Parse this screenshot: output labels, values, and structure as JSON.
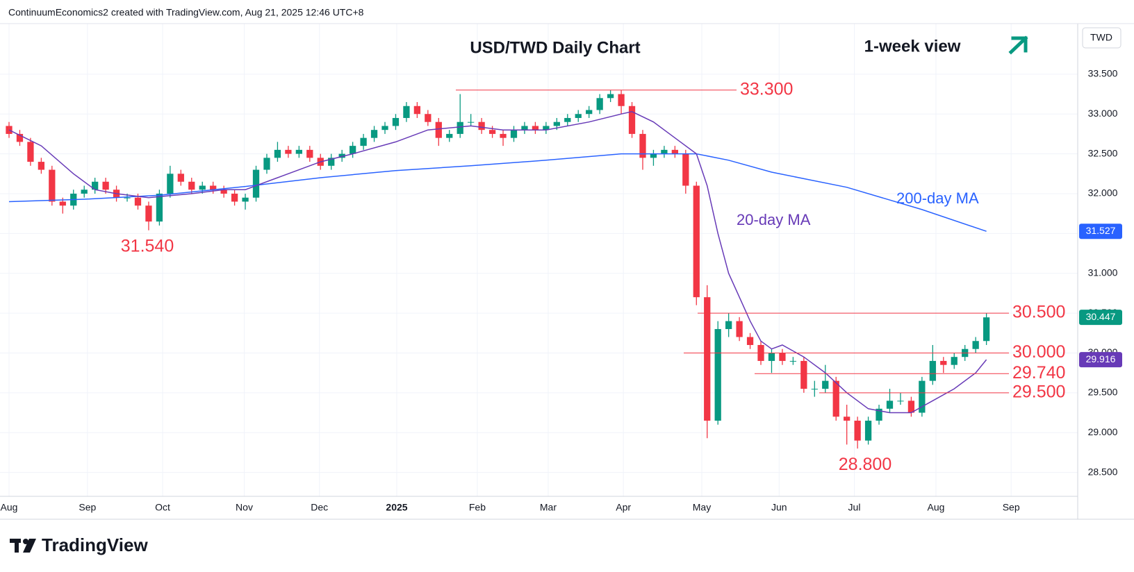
{
  "header": "ContinuumEconomics2 created with TradingView.com, Aug 21, 2025 12:46 UTC+8",
  "logo": "TradingView",
  "chart_data": {
    "type": "candlestick",
    "title": "USD/TWD Daily Chart",
    "subtitle": "1-week view",
    "currency": "TWD",
    "open": [
      32.85,
      32.75,
      32.65,
      32.4,
      32.3,
      31.9,
      31.85,
      32.0,
      32.05,
      32.15,
      32.05,
      31.95,
      31.95,
      31.85,
      31.65,
      32.0,
      32.25,
      32.15,
      32.05,
      32.1,
      32.05,
      32.0,
      31.9,
      31.95,
      32.3,
      32.45,
      32.55,
      32.5,
      32.55,
      32.45,
      32.35,
      32.45,
      32.5,
      32.6,
      32.7,
      32.8,
      32.85,
      32.95,
      33.1,
      33.0,
      32.9,
      32.7,
      32.75,
      32.9,
      32.9,
      32.8,
      32.75,
      32.7,
      32.8,
      32.85,
      32.8,
      32.85,
      32.9,
      32.95,
      33.0,
      33.05,
      33.2,
      33.25,
      33.1,
      32.75,
      32.45,
      32.5,
      32.55,
      32.5,
      32.1,
      30.7,
      29.15,
      30.3,
      30.4,
      30.2,
      30.1,
      29.9,
      30.0,
      29.9,
      29.9,
      29.55,
      29.55,
      29.65,
      29.2,
      29.15,
      28.9,
      29.15,
      29.3,
      29.4,
      29.4,
      29.25,
      29.65,
      29.9,
      29.85,
      29.95,
      30.05,
      30.15
    ],
    "high": [
      32.9,
      32.8,
      32.7,
      32.45,
      32.35,
      31.95,
      32.05,
      32.1,
      32.2,
      32.2,
      32.1,
      32.0,
      32.0,
      31.9,
      32.05,
      32.35,
      32.3,
      32.2,
      32.15,
      32.15,
      32.1,
      32.05,
      32.0,
      32.35,
      32.5,
      32.65,
      32.6,
      32.6,
      32.6,
      32.5,
      32.5,
      32.55,
      32.65,
      32.75,
      32.85,
      32.9,
      33.0,
      33.15,
      33.15,
      33.05,
      32.95,
      32.8,
      33.25,
      33.0,
      32.95,
      32.85,
      32.8,
      32.85,
      32.9,
      32.9,
      32.9,
      32.95,
      33.0,
      33.05,
      33.1,
      33.25,
      33.3,
      33.3,
      33.15,
      32.8,
      32.55,
      32.6,
      32.6,
      32.55,
      32.15,
      30.85,
      30.4,
      30.5,
      30.45,
      30.25,
      30.15,
      30.05,
      30.05,
      29.95,
      29.95,
      29.65,
      29.85,
      29.7,
      29.35,
      29.2,
      29.2,
      29.35,
      29.55,
      29.5,
      29.45,
      29.7,
      30.1,
      29.95,
      30.0,
      30.1,
      30.2,
      30.5
    ],
    "low": [
      32.7,
      32.6,
      32.35,
      32.25,
      31.85,
      31.75,
      31.8,
      31.95,
      32.0,
      32.0,
      31.9,
      31.9,
      31.8,
      31.54,
      31.6,
      31.95,
      32.1,
      32.0,
      32.0,
      32.0,
      31.95,
      31.85,
      31.8,
      31.9,
      32.25,
      32.4,
      32.45,
      32.45,
      32.4,
      32.3,
      32.3,
      32.4,
      32.45,
      32.55,
      32.65,
      32.75,
      32.8,
      32.9,
      32.95,
      32.85,
      32.6,
      32.65,
      32.7,
      32.85,
      32.75,
      32.7,
      32.6,
      32.65,
      32.75,
      32.75,
      32.75,
      32.8,
      32.85,
      32.9,
      32.95,
      33.0,
      33.15,
      33.0,
      32.7,
      32.3,
      32.35,
      32.45,
      32.45,
      32.0,
      30.6,
      28.93,
      29.1,
      30.2,
      30.15,
      30.05,
      29.85,
      29.75,
      29.85,
      29.85,
      29.5,
      29.45,
      29.5,
      29.15,
      28.85,
      28.8,
      28.85,
      29.1,
      29.25,
      29.35,
      29.2,
      29.2,
      29.6,
      29.75,
      29.8,
      29.9,
      30.0,
      30.1
    ],
    "close": [
      32.75,
      32.65,
      32.4,
      32.3,
      31.9,
      31.85,
      32.0,
      32.05,
      32.15,
      32.05,
      31.95,
      31.95,
      31.85,
      31.65,
      32.0,
      32.25,
      32.15,
      32.05,
      32.1,
      32.05,
      32.0,
      31.9,
      31.95,
      32.3,
      32.45,
      32.55,
      32.5,
      32.55,
      32.45,
      32.35,
      32.45,
      32.5,
      32.6,
      32.7,
      32.8,
      32.85,
      32.95,
      33.1,
      33.0,
      32.9,
      32.7,
      32.75,
      32.9,
      32.9,
      32.8,
      32.75,
      32.7,
      32.8,
      32.85,
      32.8,
      32.85,
      32.9,
      32.95,
      33.0,
      33.05,
      33.2,
      33.25,
      33.1,
      32.75,
      32.45,
      32.5,
      32.55,
      32.5,
      32.1,
      30.7,
      29.15,
      30.3,
      30.4,
      30.2,
      30.1,
      29.9,
      30.0,
      29.9,
      29.9,
      29.55,
      29.55,
      29.65,
      29.2,
      29.15,
      28.9,
      29.15,
      29.3,
      29.4,
      29.4,
      29.25,
      29.65,
      29.9,
      29.85,
      29.95,
      30.05,
      30.15,
      30.447
    ],
    "up_color": "#089981",
    "down_color": "#f23645",
    "xlim": [
      0,
      99.5
    ],
    "xticks": [
      {
        "value": 0,
        "label": "Aug"
      },
      {
        "value": 7.3,
        "label": "Sep"
      },
      {
        "value": 14.3,
        "label": "Oct"
      },
      {
        "value": 21.9,
        "label": "Nov"
      },
      {
        "value": 28.9,
        "label": "Dec"
      },
      {
        "value": 36.1,
        "label": "2025"
      },
      {
        "value": 43.6,
        "label": "Feb"
      },
      {
        "value": 50.2,
        "label": "Mar"
      },
      {
        "value": 57.2,
        "label": "Apr"
      },
      {
        "value": 64.5,
        "label": "May"
      },
      {
        "value": 71.7,
        "label": "Jun"
      },
      {
        "value": 78.7,
        "label": "Jul"
      },
      {
        "value": 86.3,
        "label": "Aug"
      },
      {
        "value": 93.3,
        "label": "Sep"
      }
    ],
    "ylim": [
      28.2,
      34.135
    ],
    "yticks": [
      {
        "value": 28.5,
        "label": "28.500"
      },
      {
        "value": 29,
        "label": "29.000"
      },
      {
        "value": 29.5,
        "label": "29.500"
      },
      {
        "value": 30,
        "label": "30.000"
      },
      {
        "value": 30.5,
        "label": "30.500"
      },
      {
        "value": 31,
        "label": "31.000"
      },
      {
        "value": 31.5,
        "label": "31.500"
      },
      {
        "value": 32,
        "label": "32.000"
      },
      {
        "value": 32.5,
        "label": "32.500"
      },
      {
        "value": 33,
        "label": "33.000"
      },
      {
        "value": 33.5,
        "label": "33.500"
      }
    ],
    "grid": true,
    "series": [
      {
        "name": "200-day MA",
        "color": "#2962ff",
        "x": [
          0,
          7,
          14,
          22,
          29,
          36,
          43,
          50,
          57,
          64,
          67,
          71,
          78,
          85,
          91
        ],
        "values": [
          31.9,
          31.93,
          31.98,
          32.09,
          32.2,
          32.29,
          32.35,
          32.42,
          32.5,
          32.5,
          32.42,
          32.27,
          32.08,
          31.8,
          31.527
        ]
      },
      {
        "name": "20-day MA",
        "color": "#673ab7",
        "x": [
          0,
          3,
          6,
          8,
          10,
          13,
          17,
          20,
          22,
          25,
          29,
          32,
          36,
          39,
          43,
          46,
          50,
          54,
          57,
          58,
          60,
          62,
          64,
          65,
          66,
          67,
          68,
          69,
          70,
          71,
          72,
          74,
          76,
          78,
          80,
          82,
          84,
          86,
          88,
          90,
          91
        ],
        "values": [
          32.8,
          32.6,
          32.25,
          32.05,
          32.0,
          31.95,
          32.0,
          32.05,
          32.05,
          32.2,
          32.4,
          32.5,
          32.65,
          32.8,
          32.85,
          32.8,
          32.8,
          32.9,
          33.0,
          33.03,
          32.9,
          32.7,
          32.5,
          32.1,
          31.5,
          31.0,
          30.7,
          30.4,
          30.15,
          30.05,
          30.1,
          29.95,
          29.75,
          29.5,
          29.3,
          29.25,
          29.25,
          29.4,
          29.55,
          29.75,
          29.916
        ]
      }
    ],
    "levels": [
      {
        "value": 33.3,
        "label": "33.300"
      },
      {
        "value": 30.5,
        "label": "30.500"
      },
      {
        "value": 30,
        "label": "30.000"
      },
      {
        "value": 29.74,
        "label": "29.740"
      },
      {
        "value": 29.5,
        "label": "29.500"
      }
    ],
    "level_color": "#f23645",
    "annotations": [
      {
        "value": 31.54,
        "label": "31.540"
      },
      {
        "value": 28.8,
        "label": "28.800"
      }
    ]
  }
}
